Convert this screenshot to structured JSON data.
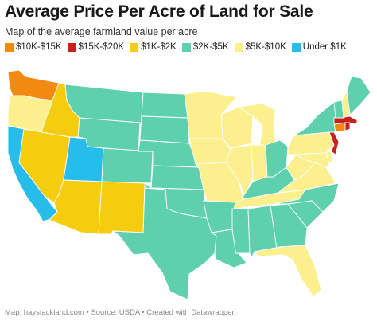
{
  "header": {
    "title": "Average Price Per Acre of Land for Sale",
    "subtitle": "Map of the average farmland value per acre"
  },
  "legend": [
    {
      "label": "$10K-$15K",
      "color": "#f28a11"
    },
    {
      "label": "$15K-$20K",
      "color": "#c7201f"
    },
    {
      "label": "$1K-$2K",
      "color": "#f6cc0f"
    },
    {
      "label": "$2K-$5K",
      "color": "#5ed0ad"
    },
    {
      "label": "$5K-$10K",
      "color": "#fbef8e"
    },
    {
      "label": "Under $1K",
      "color": "#27bdea"
    }
  ],
  "states": [
    {
      "name": "WA",
      "category": "$10K-$15K"
    },
    {
      "name": "OR",
      "category": "$5K-$10K"
    },
    {
      "name": "CA",
      "category": "Under $1K"
    },
    {
      "name": "NV",
      "category": "$1K-$2K"
    },
    {
      "name": "ID",
      "category": "$1K-$2K"
    },
    {
      "name": "UT",
      "category": "Under $1K"
    },
    {
      "name": "AZ",
      "category": "$1K-$2K"
    },
    {
      "name": "NM",
      "category": "$1K-$2K"
    },
    {
      "name": "MT",
      "category": "$2K-$5K"
    },
    {
      "name": "WY",
      "category": "$2K-$5K"
    },
    {
      "name": "CO",
      "category": "$2K-$5K"
    },
    {
      "name": "ND",
      "category": "$2K-$5K"
    },
    {
      "name": "SD",
      "category": "$2K-$5K"
    },
    {
      "name": "NE",
      "category": "$2K-$5K"
    },
    {
      "name": "KS",
      "category": "$2K-$5K"
    },
    {
      "name": "OK",
      "category": "$2K-$5K"
    },
    {
      "name": "TX",
      "category": "$2K-$5K"
    },
    {
      "name": "MN",
      "category": "$5K-$10K"
    },
    {
      "name": "IA",
      "category": "$5K-$10K"
    },
    {
      "name": "MO",
      "category": "$5K-$10K"
    },
    {
      "name": "AR",
      "category": "$2K-$5K"
    },
    {
      "name": "LA",
      "category": "$2K-$5K"
    },
    {
      "name": "WI",
      "category": "$5K-$10K"
    },
    {
      "name": "IL",
      "category": "$5K-$10K"
    },
    {
      "name": "MI",
      "category": "$5K-$10K"
    },
    {
      "name": "IN",
      "category": "$5K-$10K"
    },
    {
      "name": "OH",
      "category": "$2K-$5K"
    },
    {
      "name": "KY",
      "category": "$2K-$5K"
    },
    {
      "name": "TN",
      "category": "$5K-$10K"
    },
    {
      "name": "MS",
      "category": "$2K-$5K"
    },
    {
      "name": "AL",
      "category": "$2K-$5K"
    },
    {
      "name": "GA",
      "category": "$2K-$5K"
    },
    {
      "name": "FL",
      "category": "$5K-$10K"
    },
    {
      "name": "SC",
      "category": "$2K-$5K"
    },
    {
      "name": "NC",
      "category": "$2K-$5K"
    },
    {
      "name": "VA",
      "category": "$5K-$10K"
    },
    {
      "name": "WV",
      "category": "$5K-$10K"
    },
    {
      "name": "PA",
      "category": "$5K-$10K"
    },
    {
      "name": "NY",
      "category": "$2K-$5K"
    },
    {
      "name": "MD",
      "category": "$5K-$10K"
    },
    {
      "name": "DE",
      "category": "$5K-$10K"
    },
    {
      "name": "NJ",
      "category": "$15K-$20K"
    },
    {
      "name": "CT",
      "category": "$10K-$15K"
    },
    {
      "name": "RI",
      "category": "$15K-$20K"
    },
    {
      "name": "MA",
      "category": "$15K-$20K"
    },
    {
      "name": "VT",
      "category": "$2K-$5K"
    },
    {
      "name": "NH",
      "category": "$5K-$10K"
    },
    {
      "name": "ME",
      "category": "$2K-$5K"
    }
  ],
  "footer": {
    "source": "Map: haystackland.com • Source: USDA • Created with Datawrapper"
  }
}
